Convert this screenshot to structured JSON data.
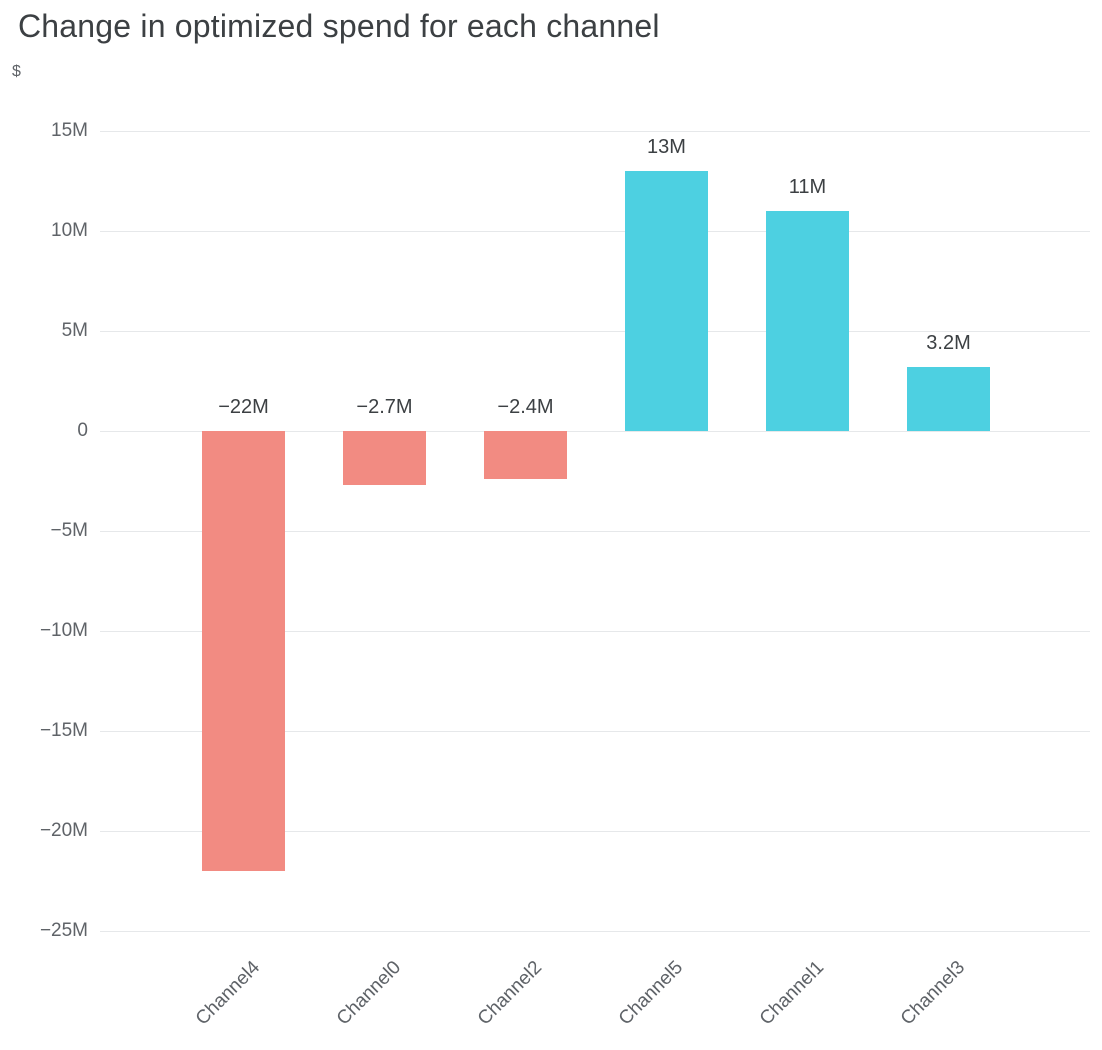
{
  "chart_data": {
    "type": "bar",
    "title": "Change in optimized spend for each channel",
    "ylabel": "$",
    "xlabel": "",
    "categories": [
      "Channel4",
      "Channel0",
      "Channel2",
      "Channel5",
      "Channel1",
      "Channel3"
    ],
    "values_millions": [
      -22,
      -2.7,
      -2.4,
      13,
      11,
      3.2
    ],
    "value_labels": [
      "−22M",
      "−2.7M",
      "−2.4M",
      "13M",
      "11M",
      "3.2M"
    ],
    "y_ticks_millions": [
      15,
      10,
      5,
      0,
      -5,
      -10,
      -15,
      -20,
      -25
    ],
    "y_tick_labels": [
      "15M",
      "10M",
      "5M",
      "0",
      "−5M",
      "−10M",
      "−15M",
      "−20M",
      "−25M"
    ],
    "ylim_millions": [
      -27.5,
      17.5
    ],
    "grid": true,
    "legend": false,
    "colors": {
      "increase": "#4dd0e1",
      "decrease": "#f28b82",
      "grid": "#e6e8ea",
      "axis_text": "#5f6368",
      "title_text": "#3c4043"
    }
  }
}
